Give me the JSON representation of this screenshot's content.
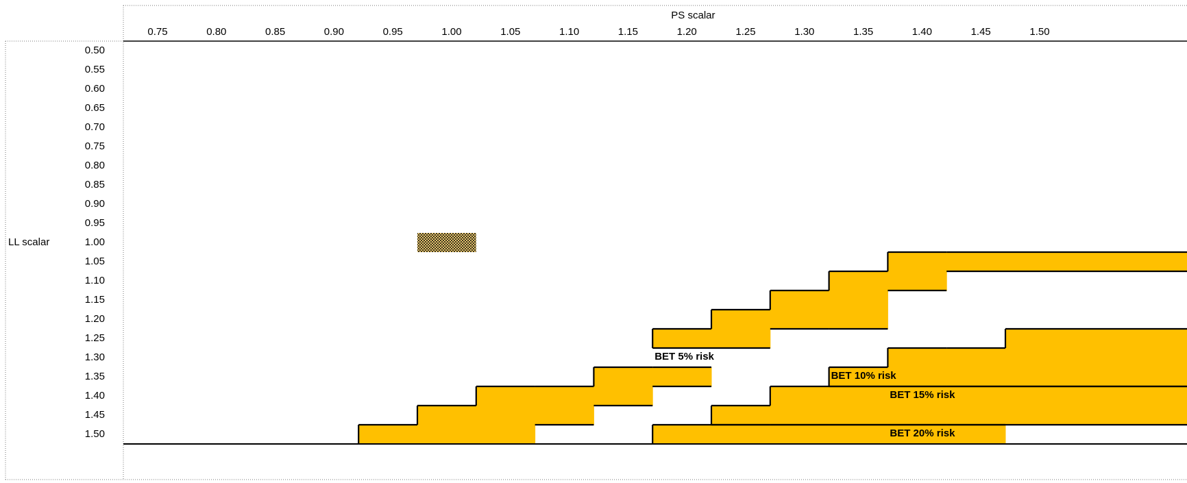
{
  "chart_data": {
    "type": "heatmap",
    "xlabel": "PS scalar",
    "ylabel": "LL scalar",
    "x": [
      "0.75",
      "0.80",
      "0.85",
      "0.90",
      "0.95",
      "1.00",
      "1.05",
      "1.10",
      "1.15",
      "1.20",
      "1.25",
      "1.30",
      "1.35",
      "1.40",
      "1.45",
      "1.50"
    ],
    "y": [
      "0.50",
      "0.55",
      "0.60",
      "0.65",
      "0.70",
      "0.75",
      "0.80",
      "0.85",
      "0.90",
      "0.95",
      "1.00",
      "1.05",
      "1.10",
      "1.15",
      "1.20",
      "1.25",
      "1.30",
      "1.35",
      "1.40",
      "1.45",
      "1.50"
    ],
    "baseline_cell": {
      "x": "1.00",
      "y": "1.00"
    },
    "bands": [
      {
        "name": "BET 5% risk",
        "label_cell": {
          "x": "1.20",
          "y": "1.30"
        },
        "cells": [
          [
            "1.40",
            "1.05"
          ],
          [
            "1.45",
            "1.05"
          ],
          [
            "1.50",
            "1.05"
          ],
          [
            "1.35",
            "1.10"
          ],
          [
            "1.40",
            "1.10"
          ],
          [
            "1.30",
            "1.15"
          ],
          [
            "1.35",
            "1.15"
          ],
          [
            "1.25",
            "1.20"
          ],
          [
            "1.30",
            "1.20"
          ],
          [
            "1.35",
            "1.20"
          ],
          [
            "1.20",
            "1.25"
          ],
          [
            "1.25",
            "1.25"
          ],
          [
            "1.15",
            "1.35"
          ],
          [
            "1.20",
            "1.35"
          ],
          [
            "1.05",
            "1.40"
          ],
          [
            "1.10",
            "1.40"
          ],
          [
            "1.15",
            "1.40"
          ],
          [
            "1.00",
            "1.45"
          ],
          [
            "1.05",
            "1.45"
          ],
          [
            "1.10",
            "1.45"
          ],
          [
            "0.95",
            "1.50"
          ],
          [
            "1.00",
            "1.50"
          ],
          [
            "1.05",
            "1.50"
          ]
        ]
      },
      {
        "name": "BET 10% risk",
        "label_cell": {
          "x": "1.35",
          "y": "1.35"
        },
        "cells": [
          [
            "1.50",
            "1.25"
          ],
          [
            "1.40",
            "1.30"
          ],
          [
            "1.45",
            "1.30"
          ],
          [
            "1.50",
            "1.30"
          ],
          [
            "1.35",
            "1.35"
          ],
          [
            "1.40",
            "1.35"
          ],
          [
            "1.45",
            "1.35"
          ],
          [
            "1.50",
            "1.35"
          ]
        ]
      },
      {
        "name": "BET 15% risk",
        "label_cell": {
          "x": "1.40",
          "y": "1.40"
        },
        "cells": [
          [
            "1.30",
            "1.40"
          ],
          [
            "1.35",
            "1.40"
          ],
          [
            "1.40",
            "1.40"
          ],
          [
            "1.45",
            "1.40"
          ],
          [
            "1.50",
            "1.40"
          ],
          [
            "1.25",
            "1.45"
          ],
          [
            "1.30",
            "1.45"
          ],
          [
            "1.35",
            "1.45"
          ],
          [
            "1.40",
            "1.45"
          ],
          [
            "1.45",
            "1.45"
          ],
          [
            "1.50",
            "1.45"
          ]
        ]
      },
      {
        "name": "BET 20% risk",
        "label_cell": {
          "x": "1.40",
          "y": "1.50"
        },
        "cells": [
          [
            "1.20",
            "1.50"
          ],
          [
            "1.25",
            "1.50"
          ],
          [
            "1.30",
            "1.50"
          ],
          [
            "1.35",
            "1.50"
          ],
          [
            "1.40",
            "1.50"
          ],
          [
            "1.45",
            "1.50"
          ]
        ]
      }
    ],
    "colors": {
      "band_fill": "#FFC000",
      "border": "#000000",
      "baseline_fill": "#8C7A3A",
      "background": "#FFFFFF"
    }
  }
}
